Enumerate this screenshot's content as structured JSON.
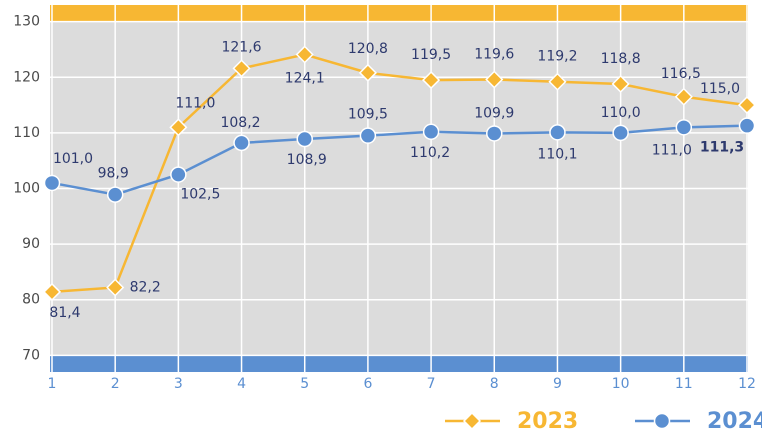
{
  "chart_data": {
    "type": "line",
    "categories": [
      "1",
      "2",
      "3",
      "4",
      "5",
      "6",
      "7",
      "8",
      "9",
      "10",
      "11",
      "12"
    ],
    "series": [
      {
        "name": "2023",
        "color": "#f7b733",
        "marker": "diamond",
        "values": [
          81.4,
          82.2,
          111.0,
          121.6,
          124.1,
          120.8,
          119.5,
          119.6,
          119.2,
          118.8,
          116.5,
          115.0
        ],
        "value_labels": [
          "81,4",
          "82,2",
          "111,0",
          "121,6",
          "124,1",
          "120,8",
          "119,5",
          "119,6",
          "119,2",
          "118,8",
          "116,5",
          "115,0"
        ]
      },
      {
        "name": "2024",
        "color": "#5b8fd1",
        "marker": "circle",
        "values": [
          101.0,
          98.9,
          102.5,
          108.2,
          108.9,
          109.5,
          110.2,
          109.9,
          110.1,
          110.0,
          111.0,
          111.3
        ],
        "value_labels": [
          "101,0",
          "98,9",
          "102,5",
          "108,2",
          "108,9",
          "109,5",
          "110,2",
          "109,9",
          "110,1",
          "110,0",
          "111,0",
          "111,3"
        ]
      }
    ],
    "ylim": [
      67,
      133
    ],
    "yticks": [
      70,
      80,
      90,
      100,
      110,
      120,
      130
    ],
    "grid": true,
    "legend": "bottom-right"
  }
}
